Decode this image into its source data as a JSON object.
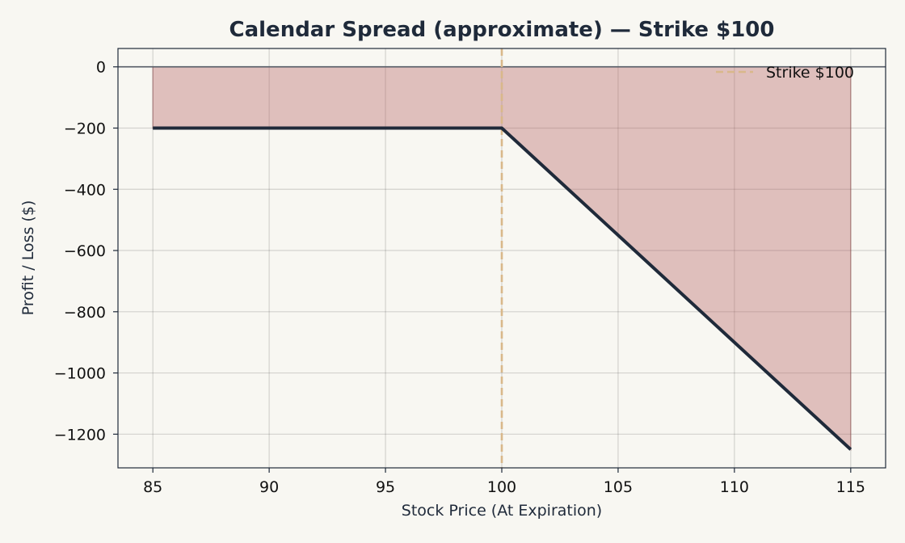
{
  "chart_data": {
    "type": "line",
    "title": "Calendar Spread (approximate) — Strike $100",
    "xlabel": "Stock Price (At Expiration)",
    "ylabel": "Profit / Loss ($)",
    "xlim": [
      83.5,
      116.5
    ],
    "ylim": [
      -1310,
      60
    ],
    "xticks": [
      85,
      90,
      95,
      100,
      105,
      110,
      115
    ],
    "yticks": [
      0,
      -200,
      -400,
      -600,
      -800,
      -1000,
      -1200
    ],
    "xtick_labels": [
      "85",
      "90",
      "95",
      "100",
      "105",
      "110",
      "115"
    ],
    "ytick_labels": [
      "0",
      "−200",
      "−400",
      "−600",
      "−800",
      "−1000",
      "−1200"
    ],
    "grid": true,
    "legend": {
      "placement": "top-right",
      "entries": [
        "Strike $100"
      ]
    },
    "series": [
      {
        "x": [
          85,
          100,
          115
        ],
        "y": [
          -200,
          -200,
          -1250
        ],
        "color": "#1f2a3a"
      }
    ],
    "fill_to_zero": {
      "x": [
        85,
        100,
        115
      ],
      "y": [
        -200,
        -200,
        -1250
      ],
      "color": "#b5636366"
    },
    "strike_line": {
      "x": 100,
      "label": "Strike $100",
      "color": "#d9b88a"
    },
    "zero_line": {
      "y": 0,
      "color": "#555b66"
    }
  }
}
